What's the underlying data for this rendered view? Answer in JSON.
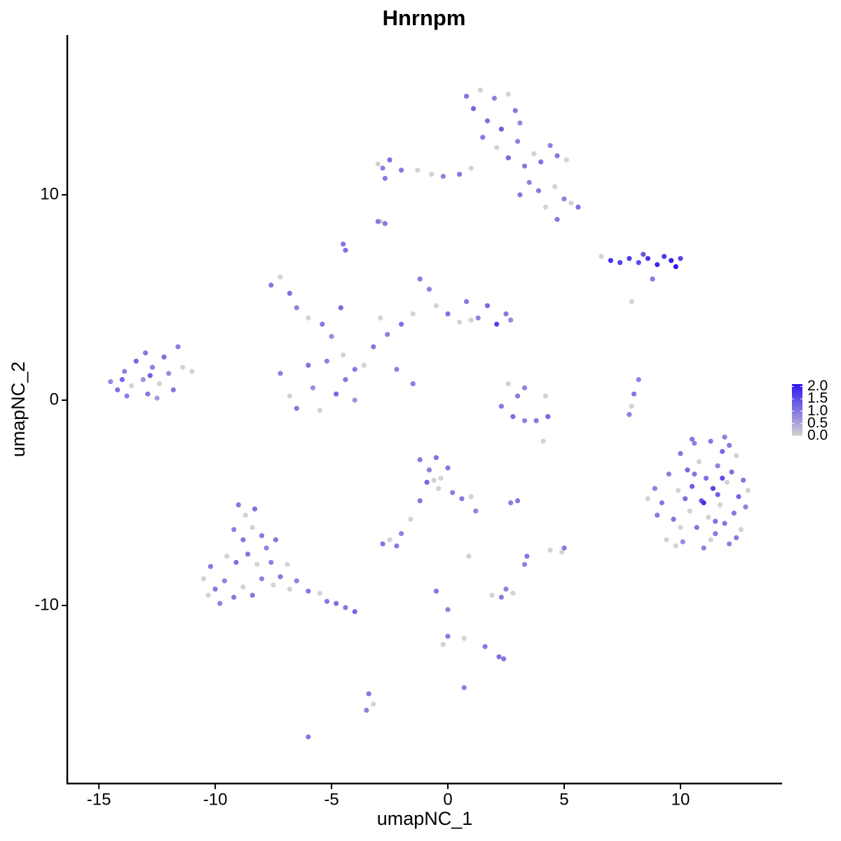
{
  "chart_data": {
    "type": "scatter",
    "title": "Hnrnpm",
    "x_label": "umapNC_1",
    "y_label": "umapNC_2",
    "xlim": [
      -16.36,
      14.37
    ],
    "ylim": [
      -18.67,
      17.78
    ],
    "xticks": [
      -15,
      -10,
      -5,
      0,
      5,
      10
    ],
    "yticks": [
      -10,
      0,
      10
    ],
    "grid": false,
    "x": [
      -14.5,
      -14.2,
      -13.9,
      -13.6,
      -13.4,
      -13.1,
      -12.9,
      -12.7,
      -12.4,
      -12.2,
      -12.0,
      -11.8,
      -11.6,
      -11.4,
      -11.0,
      -13.8,
      -13.0,
      -12.5,
      -14.0,
      -12.8,
      -7.6,
      -7.2,
      -6.8,
      -6.5,
      -6.0,
      -5.4,
      -5.0,
      -4.6,
      -4.5,
      -4.0,
      -7.2,
      -6.8,
      -6.5,
      -6.0,
      -5.8,
      -5.5,
      -5.2,
      -4.8,
      -4.4,
      -4.0,
      -3.6,
      -3.2,
      -2.6,
      -2.0,
      -1.5,
      -1.2,
      -0.8,
      -0.5,
      0,
      0.5,
      0.8,
      1.3,
      1.7,
      2.1,
      2.5,
      2.7,
      1.0,
      -2.2,
      -1.5,
      -2.9,
      0.8,
      1.1,
      1.4,
      1.7,
      2.0,
      2.3,
      2.6,
      2.9,
      3.1,
      1.5,
      2.1,
      2.6,
      3.0,
      3.3,
      3.7,
      4.0,
      4.4,
      4.7,
      5.1,
      3.5,
      3.9,
      4.2,
      4.7,
      5.0,
      5.3,
      5.6,
      4.6,
      3.1,
      1.0,
      0.5,
      -0.2,
      -0.7,
      -1.3,
      -2.0,
      -2.5,
      -2.8,
      -2.7,
      -3.0,
      -2.9,
      -2.7,
      6.6,
      7.0,
      7.4,
      7.8,
      8.2,
      8.6,
      9.0,
      9.3,
      9.6,
      9.8,
      10.0,
      8.8,
      8.4,
      7.9,
      9.2,
      9.4,
      9.5,
      9.7,
      9.9,
      10.0,
      10.1,
      10.3,
      10.4,
      10.5,
      10.6,
      10.7,
      10.8,
      10.9,
      11.0,
      11.1,
      11.2,
      11.3,
      11.4,
      11.5,
      11.6,
      11.7,
      11.8,
      11.9,
      12.0,
      12.1,
      12.2,
      12.3,
      12.4,
      12.5,
      12.6,
      12.7,
      12.8,
      9.8,
      10.2,
      11.0,
      11.6,
      12.1,
      10.6,
      11.3,
      8.9,
      8.6,
      9.0,
      11.9,
      12.4,
      10.0,
      11.5,
      12.9,
      10.5,
      11.8,
      -9.0,
      -8.7,
      -8.3,
      -9.2,
      -8.8,
      -8.4,
      -8.0,
      -7.8,
      -9.5,
      -9.1,
      -8.6,
      -8.2,
      -7.6,
      -10.2,
      -10.5,
      -10.0,
      -9.6,
      -9.2,
      -8.8,
      -8.4,
      -8.0,
      -7.5,
      -7.2,
      -6.8,
      -6.5,
      -6.0,
      -5.5,
      -5.2,
      -4.8,
      -4.4,
      -4.0,
      -9.8,
      -10.3,
      -7.4,
      -6.9,
      -1.2,
      -0.8,
      -0.5,
      -0.3,
      0,
      -0.9,
      -0.4,
      0.2,
      0.6,
      1.0,
      1.2,
      -1.2,
      -1.6,
      -2.0,
      -2.8,
      -2.5,
      -2.2,
      -0.6,
      2.6,
      3.0,
      3.3,
      2.3,
      2.8,
      3.3,
      3.8,
      4.3,
      4.2,
      4.1,
      8.2,
      8.0,
      7.9,
      7.8,
      -1.5,
      -4.4,
      -4.5,
      -3.0,
      3.0,
      2.7,
      2.3,
      1.9,
      2.5,
      2.8,
      2.4,
      2.2,
      1.6,
      0.7,
      0,
      -0.2,
      -0.5,
      0,
      -3.4,
      -3.5,
      -3.2,
      -6.0,
      0.7,
      5.0,
      4.9,
      3.4,
      3.3,
      4.4,
      0.9
    ],
    "values": [
      0.9,
      0.5,
      1.4,
      0.7,
      1.9,
      1.0,
      0.3,
      1.6,
      0.8,
      2.1,
      1.3,
      0.5,
      2.6,
      1.6,
      1.4,
      0.2,
      2.3,
      0.1,
      1.0,
      1.2,
      5.6,
      6.0,
      5.2,
      4.5,
      4.0,
      3.7,
      3.1,
      4.5,
      2.2,
      1.5,
      1.3,
      0.2,
      -0.4,
      1.7,
      0.6,
      -0.5,
      1.9,
      0.3,
      1.0,
      0,
      1.7,
      2.6,
      3.2,
      3.7,
      4.2,
      5.9,
      5.4,
      4.6,
      4.2,
      3.8,
      4.8,
      4.0,
      4.6,
      3.7,
      4.2,
      3.9,
      3.9,
      1.5,
      0.8,
      4.0,
      14.8,
      14.2,
      15.1,
      13.6,
      14.7,
      13.2,
      14.9,
      14.1,
      13.5,
      12.8,
      12.3,
      11.8,
      12.6,
      11.4,
      12.0,
      11.6,
      12.4,
      11.9,
      11.7,
      10.6,
      10.2,
      9.4,
      8.8,
      9.8,
      9.6,
      9.4,
      10.4,
      10.0,
      11.3,
      11.0,
      10.9,
      11.0,
      11.2,
      11.2,
      11.7,
      11.3,
      10.8,
      11.5,
      8.7,
      8.6,
      7.0,
      6.8,
      6.7,
      6.9,
      6.7,
      6.9,
      6.6,
      7.0,
      6.8,
      6.5,
      6.9,
      5.9,
      7.1,
      4.8,
      -5.0,
      -6.8,
      -3.6,
      -5.8,
      -4.4,
      -2.6,
      -6.9,
      -3.4,
      -5.4,
      -4.2,
      -2.1,
      -6.2,
      -3.0,
      -4.9,
      -7.2,
      -3.8,
      -5.7,
      -2.0,
      -4.3,
      -6.5,
      -3.2,
      -5.1,
      -2.5,
      -6.0,
      -4.0,
      -7.0,
      -3.5,
      -5.5,
      -2.7,
      -4.7,
      -6.3,
      -3.9,
      -5.2,
      -7.1,
      -4.8,
      -5.0,
      -4.6,
      -2.2,
      -3.6,
      -6.8,
      -4.3,
      -4.8,
      -5.6,
      -1.8,
      -6.7,
      -6.2,
      -5.9,
      -4.4,
      -1.9,
      -3.8,
      -5.1,
      -5.6,
      -5.3,
      -6.3,
      -6.8,
      -6.2,
      -6.6,
      -7.2,
      -7.6,
      -7.9,
      -7.5,
      -8.0,
      -7.9,
      -8.1,
      -8.7,
      -9.2,
      -8.8,
      -9.6,
      -9.1,
      -9.5,
      -8.7,
      -9.0,
      -8.6,
      -9.2,
      -8.8,
      -9.3,
      -9.4,
      -9.8,
      -9.9,
      -10.1,
      -10.3,
      -9.9,
      -9.5,
      -6.8,
      -8.0,
      -2.9,
      -3.4,
      -2.8,
      -3.8,
      -3.3,
      -4.0,
      -4.3,
      -4.5,
      -4.8,
      -4.7,
      -5.4,
      -4.9,
      -5.8,
      -6.5,
      -7.0,
      -6.8,
      -7.1,
      -3.9,
      0.8,
      0.2,
      0.6,
      -0.3,
      -0.8,
      -1.0,
      -1.0,
      -0.8,
      0.2,
      -2.0,
      1.0,
      0.3,
      -0.3,
      -0.7,
      0.8,
      7.3,
      7.6,
      8.7,
      -4.9,
      -5.0,
      -9.6,
      -9.5,
      -9.2,
      -9.4,
      -12.6,
      -12.5,
      -12.0,
      -11.6,
      -11.5,
      -11.9,
      -9.3,
      -10.2,
      -14.3,
      -15.1,
      -14.8,
      -16.4,
      -14.0,
      -7.2,
      -7.4,
      -7.6,
      -8.0,
      -7.3,
      -7.6
    ],
    "expression": [
      0.8,
      1.1,
      0.9,
      0,
      1.2,
      0.7,
      1.0,
      0.9,
      0,
      1.1,
      0.8,
      1.0,
      0.9,
      0,
      0,
      0.9,
      1.0,
      0.6,
      1.2,
      1.3,
      1.0,
      0,
      1.1,
      0.9,
      0,
      1.0,
      0.8,
      1.2,
      0,
      1.0,
      0.9,
      0,
      1.0,
      1.1,
      0.8,
      0,
      0.9,
      1.2,
      1.0,
      0.7,
      0,
      1.0,
      0.9,
      1.1,
      0,
      1.0,
      0.9,
      0,
      1.1,
      0,
      1.0,
      0.9,
      1.2,
      1.6,
      1.0,
      0.8,
      0,
      0.9,
      1.0,
      0,
      1.0,
      1.2,
      0,
      1.1,
      0.9,
      1.3,
      0,
      1.0,
      0.8,
      1.0,
      0,
      1.2,
      0.9,
      1.0,
      0,
      1.1,
      0.9,
      1.0,
      0,
      0.9,
      1.0,
      0,
      1.0,
      0.9,
      0,
      1.1,
      0,
      1.0,
      0,
      1.0,
      0.9,
      0,
      0,
      1.0,
      1.1,
      0.9,
      1.0,
      0,
      0,
      1.0,
      0,
      1.8,
      1.6,
      1.7,
      1.5,
      1.8,
      1.9,
      1.7,
      2.0,
      2.1,
      1.6,
      1.0,
      1.4,
      0,
      1.0,
      0,
      0.9,
      1.1,
      0,
      1.0,
      0.8,
      1.2,
      0,
      1.3,
      0.9,
      1.0,
      0,
      1.4,
      0.9,
      1.1,
      0,
      1.0,
      1.6,
      1.0,
      0.9,
      0,
      1.2,
      1.0,
      0,
      0.9,
      1.1,
      1.0,
      0,
      1.2,
      0,
      1.0,
      0.9,
      0,
      1.1,
      1.8,
      1.3,
      1.0,
      1.0,
      0,
      0.9,
      0,
      1.0,
      0.9,
      1.0,
      0,
      1.1,
      0,
      1.0,
      1.5,
      1.0,
      0,
      1.1,
      0.9,
      1.0,
      0,
      1.0,
      0.9,
      0,
      1.1,
      1.0,
      0,
      0.9,
      1.0,
      0,
      1.0,
      0.9,
      1.0,
      0,
      1.0,
      0.9,
      0,
      1.0,
      0,
      0.9,
      1.0,
      0,
      1.0,
      1.1,
      1.0,
      1.2,
      0.9,
      0,
      1.0,
      0,
      1.0,
      0.9,
      1.1,
      0,
      1.0,
      1.2,
      0,
      0.9,
      1.0,
      0,
      0.9,
      1.0,
      0,
      0.9,
      1.0,
      0,
      1.0,
      0,
      0,
      1.0,
      0.9,
      1.0,
      1.1,
      0.9,
      1.0,
      1.2,
      0,
      0,
      0.9,
      1.0,
      0,
      0.9,
      0.9,
      1.1,
      1.0,
      1.0,
      1.0,
      0.9,
      1.0,
      0,
      0.9,
      0,
      1.0,
      1.1,
      1.0,
      0,
      1.0,
      0,
      1.0,
      0.9,
      1.0,
      0.9,
      0,
      1.0,
      0.9,
      1.0,
      0,
      1.0,
      0.9,
      0,
      0
    ],
    "colorbar": {
      "lim": [
        0,
        2.1
      ],
      "low": "#d3d3d3",
      "high": "#2f17f0",
      "ticks": [
        {
          "value": 0,
          "label": "0.0"
        },
        {
          "value": 0.5,
          "label": "0.5"
        },
        {
          "value": 1,
          "label": "1.0"
        },
        {
          "value": 1.5,
          "label": "1.5"
        },
        {
          "value": 2,
          "label": "2.0"
        }
      ]
    }
  }
}
